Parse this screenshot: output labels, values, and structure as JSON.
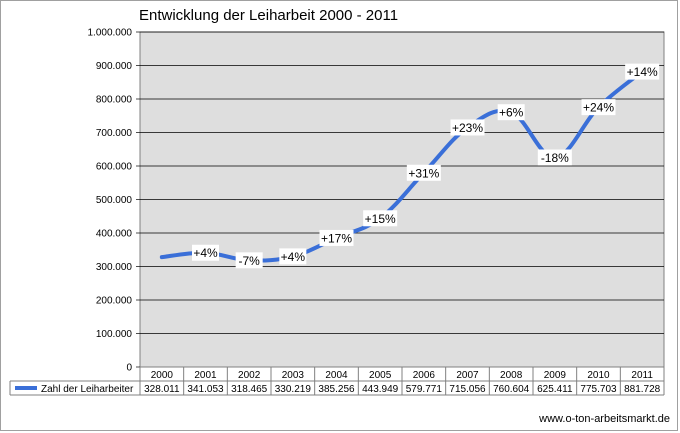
{
  "chart_data": {
    "type": "line",
    "title": "Entwicklung der Leiharbeit 2000 - 2011",
    "categories": [
      "2000",
      "2001",
      "2002",
      "2003",
      "2004",
      "2005",
      "2006",
      "2007",
      "2008",
      "2009",
      "2010",
      "2011"
    ],
    "series": [
      {
        "name": "Zahl der Leiharbeiter",
        "values": [
          328011,
          341053,
          318465,
          330219,
          385256,
          443949,
          579771,
          715056,
          760604,
          625411,
          775703,
          881728
        ],
        "table_labels": [
          "328.011",
          "341.053",
          "318.465",
          "330.219",
          "385.256",
          "443.949",
          "579.771",
          "715.056",
          "760.604",
          "625.411",
          "775.703",
          "881.728"
        ]
      }
    ],
    "annotations": [
      {
        "year_index": 1,
        "text": "+4%"
      },
      {
        "year_index": 2,
        "text": "-7%"
      },
      {
        "year_index": 3,
        "text": "+4%"
      },
      {
        "year_index": 4,
        "text": "+17%"
      },
      {
        "year_index": 5,
        "text": "+15%"
      },
      {
        "year_index": 6,
        "text": "+31%"
      },
      {
        "year_index": 7,
        "text": "+23%"
      },
      {
        "year_index": 8,
        "text": "+6%"
      },
      {
        "year_index": 9,
        "text": "-18%"
      },
      {
        "year_index": 10,
        "text": "+24%"
      },
      {
        "year_index": 11,
        "text": "+14%"
      }
    ],
    "y_ticks": [
      "0",
      "100.000",
      "200.000",
      "300.000",
      "400.000",
      "500.000",
      "600.000",
      "700.000",
      "800.000",
      "900.000",
      "1.000.000"
    ],
    "ylim": [
      0,
      1000000
    ],
    "grid": true,
    "legend": "data-table",
    "colors": {
      "line": "#3a6fd8",
      "plot_bg": "#dedede",
      "grid": "#000000"
    }
  },
  "source": "www.o-ton-arbeitsmarkt.de"
}
